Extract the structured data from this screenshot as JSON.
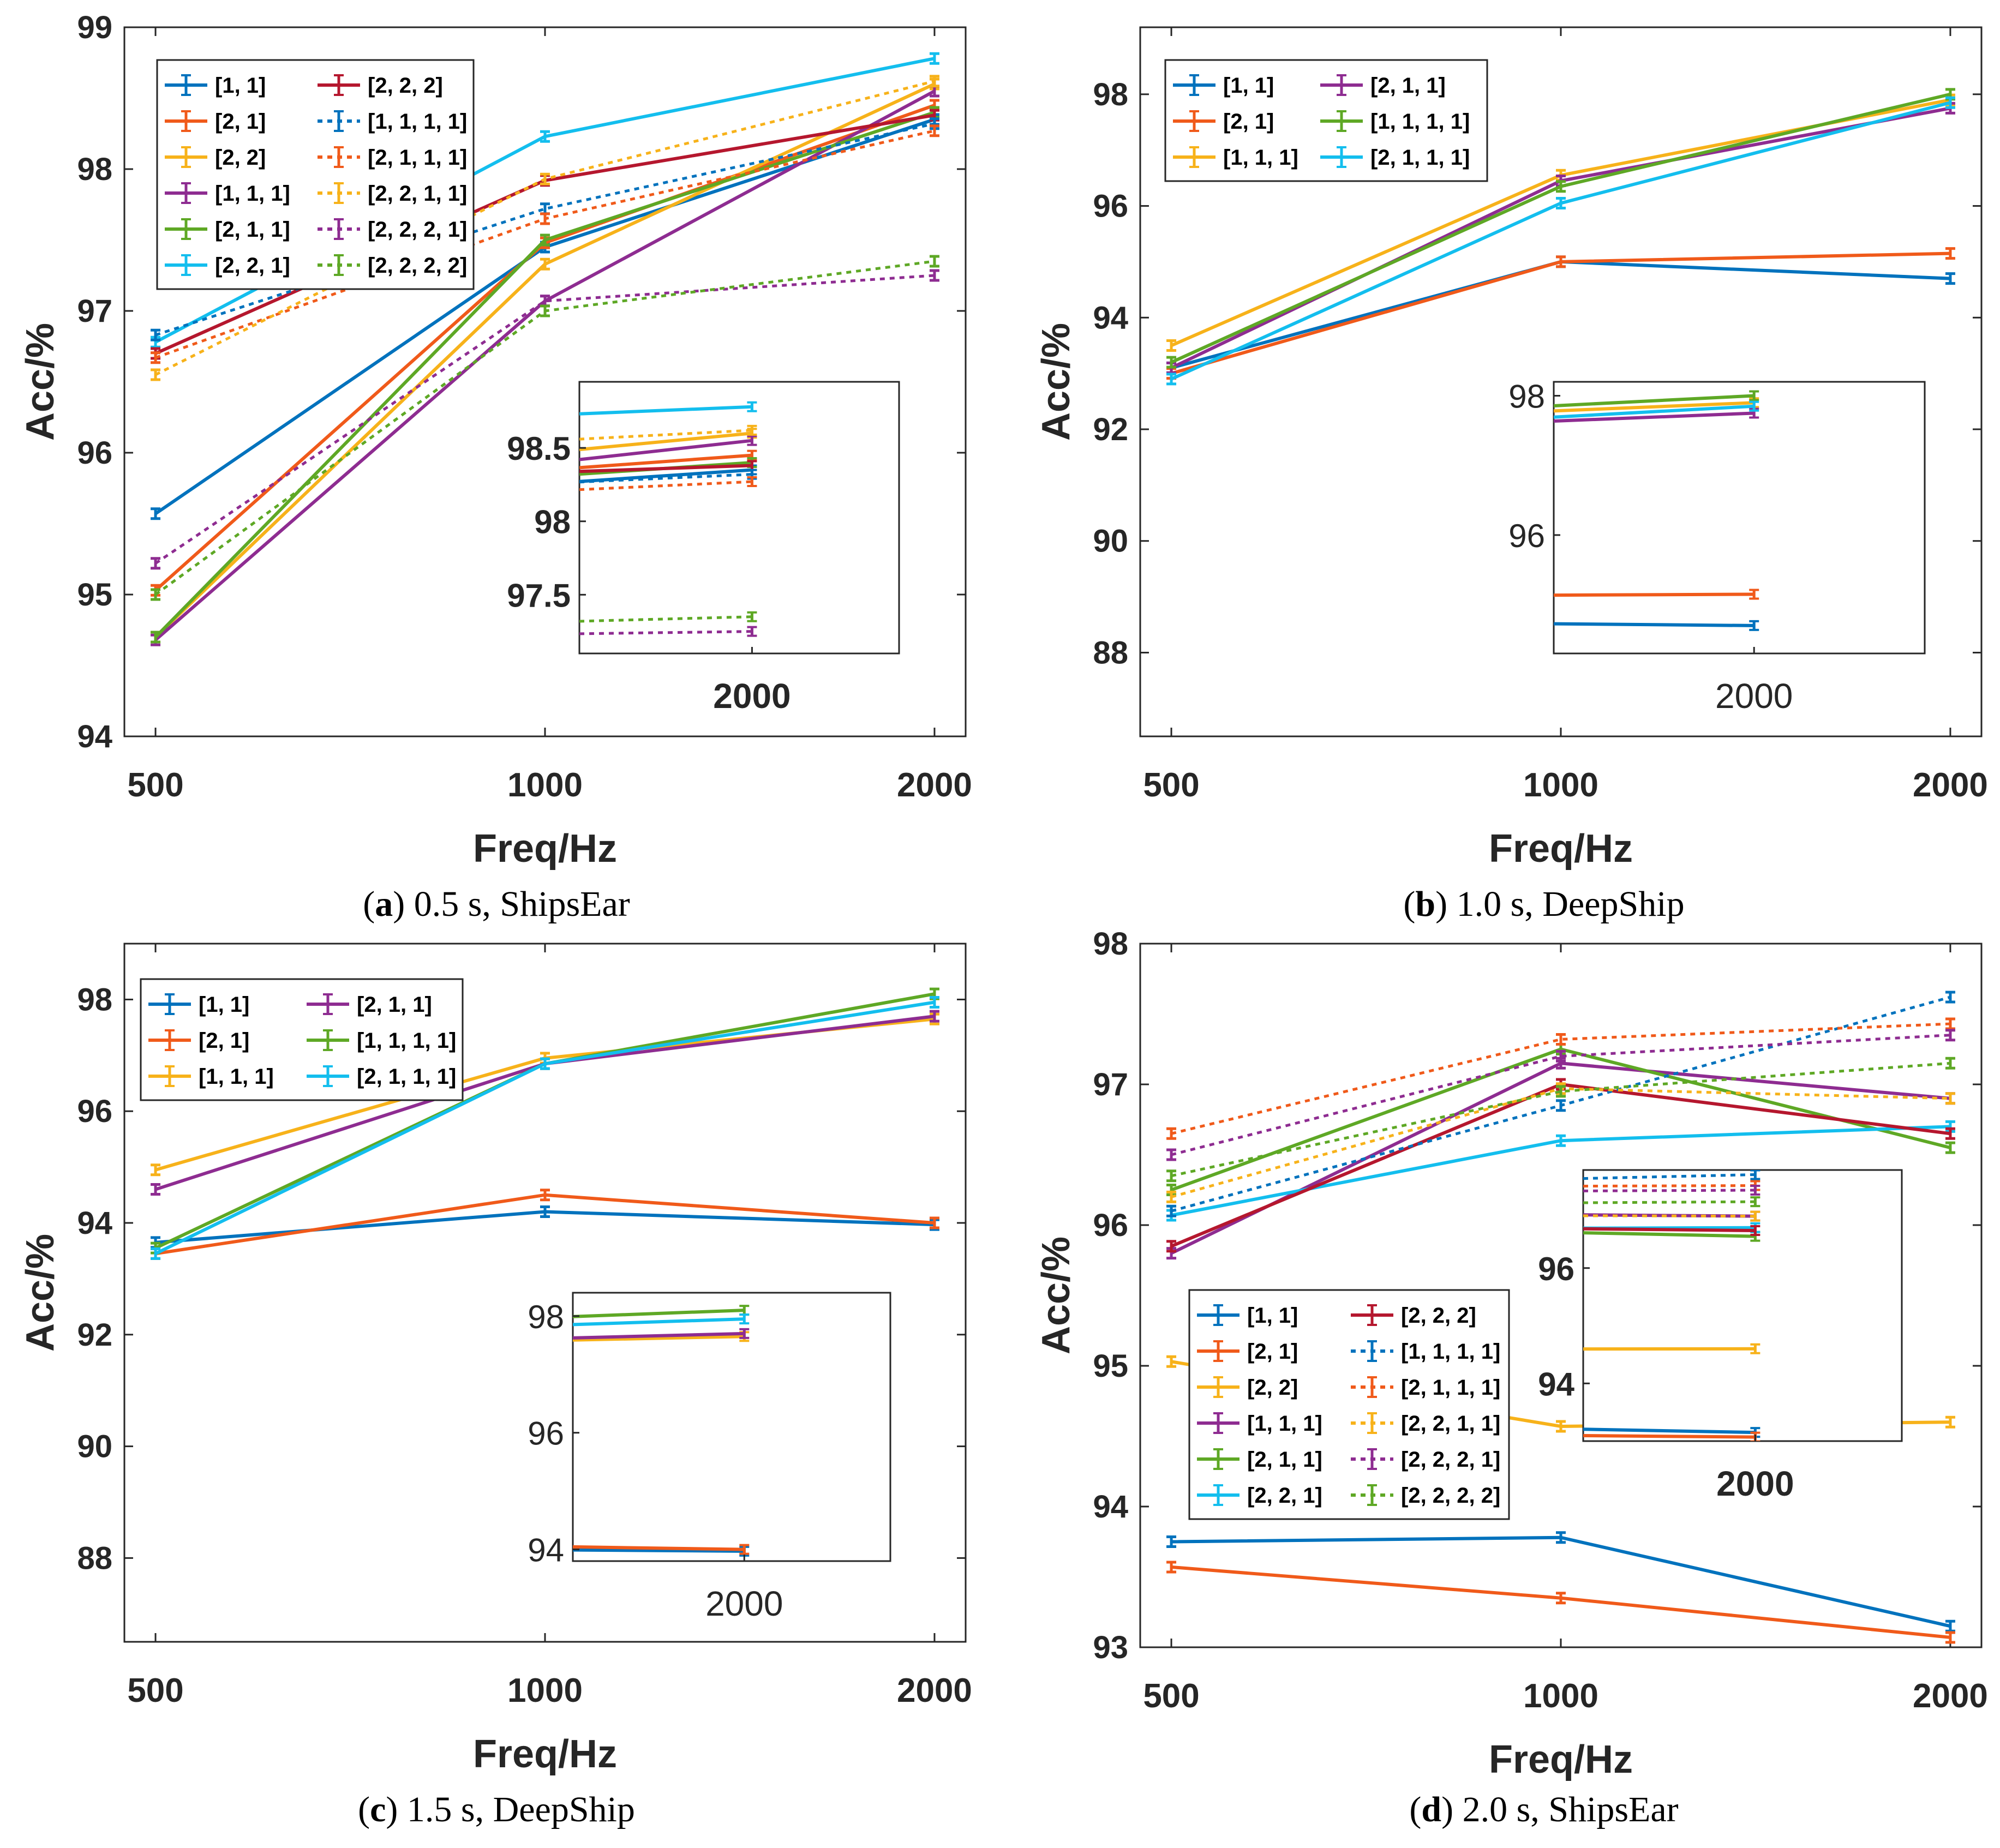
{
  "chart_data": [
    {
      "id": "a",
      "type": "line",
      "title": "",
      "xlabel": "Freq/Hz",
      "ylabel": "Acc/%",
      "caption": {
        "letter": "a",
        "text": "0.5 s, ShipsEar"
      },
      "categories": [
        "500",
        "1000",
        "2000"
      ],
      "yticks": [
        "94",
        "95",
        "96",
        "97",
        "98",
        "99"
      ],
      "ylim": [
        94,
        99
      ],
      "legend": "top-left",
      "series": [
        {
          "name": "[1, 1]",
          "color": "#0072BD",
          "style": "solid",
          "values": [
            95.57,
            97.45,
            98.35
          ]
        },
        {
          "name": "[2, 1]",
          "color": "#F05A1A",
          "style": "solid",
          "values": [
            95.03,
            97.48,
            98.45
          ]
        },
        {
          "name": "[2, 2]",
          "color": "#F7B21A",
          "style": "solid",
          "values": [
            94.7,
            97.33,
            98.6
          ]
        },
        {
          "name": "[1, 1, 1]",
          "color": "#8E2C91",
          "style": "solid",
          "values": [
            94.68,
            97.07,
            98.55
          ]
        },
        {
          "name": "[2, 1, 1]",
          "color": "#5EA825",
          "style": "solid",
          "values": [
            94.7,
            97.5,
            98.4
          ]
        },
        {
          "name": "[2, 2, 1]",
          "color": "#13BEEE",
          "style": "solid",
          "values": [
            96.78,
            98.23,
            98.78
          ]
        },
        {
          "name": "[2, 2, 2]",
          "color": "#B5172E",
          "style": "solid",
          "values": [
            96.7,
            97.92,
            98.38
          ]
        },
        {
          "name": "[1, 1, 1, 1]",
          "color": "#0072BD",
          "style": "dotted",
          "values": [
            96.83,
            97.72,
            98.32
          ]
        },
        {
          "name": "[2, 1, 1, 1]",
          "color": "#F05A1A",
          "style": "dotted",
          "values": [
            96.67,
            97.65,
            98.27
          ]
        },
        {
          "name": "[2, 2, 1, 1]",
          "color": "#F7B21A",
          "style": "dotted",
          "values": [
            96.55,
            97.93,
            98.62
          ]
        },
        {
          "name": "[2, 2, 2, 1]",
          "color": "#8E2C91",
          "style": "dotted",
          "values": [
            95.22,
            97.07,
            97.25
          ]
        },
        {
          "name": "[2, 2, 2, 2]",
          "color": "#5EA825",
          "style": "dotted",
          "values": [
            95.0,
            97.0,
            97.35
          ]
        }
      ],
      "inset": {
        "xtick": "2000",
        "yticks": [
          "97.5",
          "98",
          "98.5"
        ],
        "ylim": [
          97.1,
          98.95
        ],
        "xfrom": 0.35
      }
    },
    {
      "id": "b",
      "type": "line",
      "title": "",
      "xlabel": "Freq/Hz",
      "ylabel": "Acc/%",
      "caption": {
        "letter": "b",
        "text": "1.0 s, DeepShip"
      },
      "categories": [
        "500",
        "1000",
        "2000"
      ],
      "yticks": [
        "88",
        "90",
        "92",
        "94",
        "96",
        "98"
      ],
      "ylim": [
        86.5,
        99.2
      ],
      "legend": "top-left",
      "series": [
        {
          "name": "[1, 1]",
          "color": "#0072BD",
          "style": "solid",
          "values": [
            93.1,
            95.0,
            94.7
          ]
        },
        {
          "name": "[2, 1]",
          "color": "#F05A1A",
          "style": "solid",
          "values": [
            93.0,
            95.0,
            95.15
          ]
        },
        {
          "name": "[1, 1, 1]",
          "color": "#F7B21A",
          "style": "solid",
          "values": [
            93.5,
            96.55,
            97.9
          ]
        },
        {
          "name": "[2, 1, 1]",
          "color": "#8E2C91",
          "style": "solid",
          "values": [
            93.1,
            96.45,
            97.75
          ]
        },
        {
          "name": "[1, 1, 1, 1]",
          "color": "#5EA825",
          "style": "solid",
          "values": [
            93.2,
            96.35,
            98.0
          ]
        },
        {
          "name": "[2, 1, 1, 1]",
          "color": "#13BEEE",
          "style": "solid",
          "values": [
            92.9,
            96.05,
            97.85
          ]
        }
      ],
      "inset": {
        "xtick": "2000",
        "yticks": [
          "96",
          "98"
        ],
        "ylim": [
          94.3,
          98.2
        ],
        "xfrom": 0.35
      }
    },
    {
      "id": "c",
      "type": "line",
      "title": "",
      "xlabel": "Freq/Hz",
      "ylabel": "Acc/%",
      "caption": {
        "letter": "c",
        "text": "1.5 s, DeepShip"
      },
      "categories": [
        "500",
        "1000",
        "2000"
      ],
      "yticks": [
        "88",
        "90",
        "92",
        "94",
        "96",
        "98"
      ],
      "ylim": [
        86.5,
        99.0
      ],
      "legend": "top-left",
      "series": [
        {
          "name": "[1, 1]",
          "color": "#0072BD",
          "style": "solid",
          "values": [
            93.65,
            94.2,
            93.97
          ]
        },
        {
          "name": "[2, 1]",
          "color": "#F05A1A",
          "style": "solid",
          "values": [
            93.45,
            94.5,
            94.0
          ]
        },
        {
          "name": "[1, 1, 1]",
          "color": "#F7B21A",
          "style": "solid",
          "values": [
            94.95,
            96.95,
            97.65
          ]
        },
        {
          "name": "[2, 1, 1]",
          "color": "#8E2C91",
          "style": "solid",
          "values": [
            94.6,
            96.85,
            97.7
          ]
        },
        {
          "name": "[1, 1, 1, 1]",
          "color": "#5EA825",
          "style": "solid",
          "values": [
            93.55,
            96.85,
            98.1
          ]
        },
        {
          "name": "[2, 1, 1, 1]",
          "color": "#13BEEE",
          "style": "solid",
          "values": [
            93.45,
            96.85,
            97.95
          ]
        }
      ],
      "inset": {
        "xtick": "2000",
        "yticks": [
          "94",
          "96",
          "98"
        ],
        "ylim": [
          93.8,
          98.4
        ],
        "xfrom": 0.35
      }
    },
    {
      "id": "d",
      "type": "line",
      "title": "",
      "xlabel": "Freq/Hz",
      "ylabel": "Acc/%",
      "caption": {
        "letter": "d",
        "text": "2.0 s, ShipsEar"
      },
      "categories": [
        "500",
        "1000",
        "2000"
      ],
      "yticks": [
        "93",
        "94",
        "95",
        "96",
        "97",
        "98"
      ],
      "ylim": [
        93,
        98
      ],
      "legend": "center-left",
      "series": [
        {
          "name": "[1, 1]",
          "color": "#0072BD",
          "style": "solid",
          "values": [
            93.75,
            93.78,
            93.15
          ]
        },
        {
          "name": "[2, 1]",
          "color": "#F05A1A",
          "style": "solid",
          "values": [
            93.57,
            93.35,
            93.07
          ]
        },
        {
          "name": "[2, 2]",
          "color": "#F7B21A",
          "style": "solid",
          "values": [
            95.03,
            94.57,
            94.6
          ]
        },
        {
          "name": "[1, 1, 1]",
          "color": "#8E2C91",
          "style": "solid",
          "values": [
            95.8,
            97.15,
            96.9
          ]
        },
        {
          "name": "[2, 1, 1]",
          "color": "#5EA825",
          "style": "solid",
          "values": [
            96.25,
            97.25,
            96.55
          ]
        },
        {
          "name": "[2, 2, 1]",
          "color": "#13BEEE",
          "style": "solid",
          "values": [
            96.07,
            96.6,
            96.7
          ]
        },
        {
          "name": "[2, 2, 2]",
          "color": "#B5172E",
          "style": "solid",
          "values": [
            95.85,
            97.0,
            96.65
          ]
        },
        {
          "name": "[1, 1, 1, 1]",
          "color": "#0072BD",
          "style": "dotted",
          "values": [
            96.1,
            96.85,
            97.62
          ]
        },
        {
          "name": "[2, 1, 1, 1]",
          "color": "#F05A1A",
          "style": "dotted",
          "values": [
            96.65,
            97.32,
            97.43
          ]
        },
        {
          "name": "[2, 2, 1, 1]",
          "color": "#F7B21A",
          "style": "dotted",
          "values": [
            96.2,
            96.97,
            96.9
          ]
        },
        {
          "name": "[2, 2, 2, 1]",
          "color": "#8E2C91",
          "style": "dotted",
          "values": [
            96.5,
            97.2,
            97.35
          ]
        },
        {
          "name": "[2, 2, 2, 2]",
          "color": "#5EA825",
          "style": "dotted",
          "values": [
            96.35,
            96.95,
            97.15
          ]
        }
      ],
      "inset": {
        "xtick": "2000",
        "yticks": [
          "94",
          "96"
        ],
        "ylim": [
          93,
          97.7
        ],
        "xfrom": 0.35
      }
    }
  ]
}
